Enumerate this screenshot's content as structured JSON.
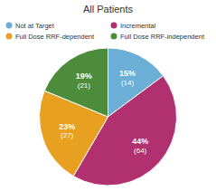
{
  "chart_data": {
    "type": "pie",
    "title": "All Patients",
    "categories": [
      "Not at Target",
      "Incremental",
      "Full Dose RRF-dependent",
      "Full Dose RRF-independent"
    ],
    "values": [
      15,
      44,
      23,
      19
    ],
    "value_labels": [
      "15%",
      "44%",
      "23%",
      "19%"
    ],
    "counts": [
      14,
      64,
      27,
      21
    ],
    "count_labels": [
      "(14)",
      "(64)",
      "(27)",
      "(21)"
    ],
    "colors": [
      "#6baed6",
      "#b03070",
      "#e8a020",
      "#4d8c3a"
    ],
    "legend": "top",
    "data_labels": true
  }
}
